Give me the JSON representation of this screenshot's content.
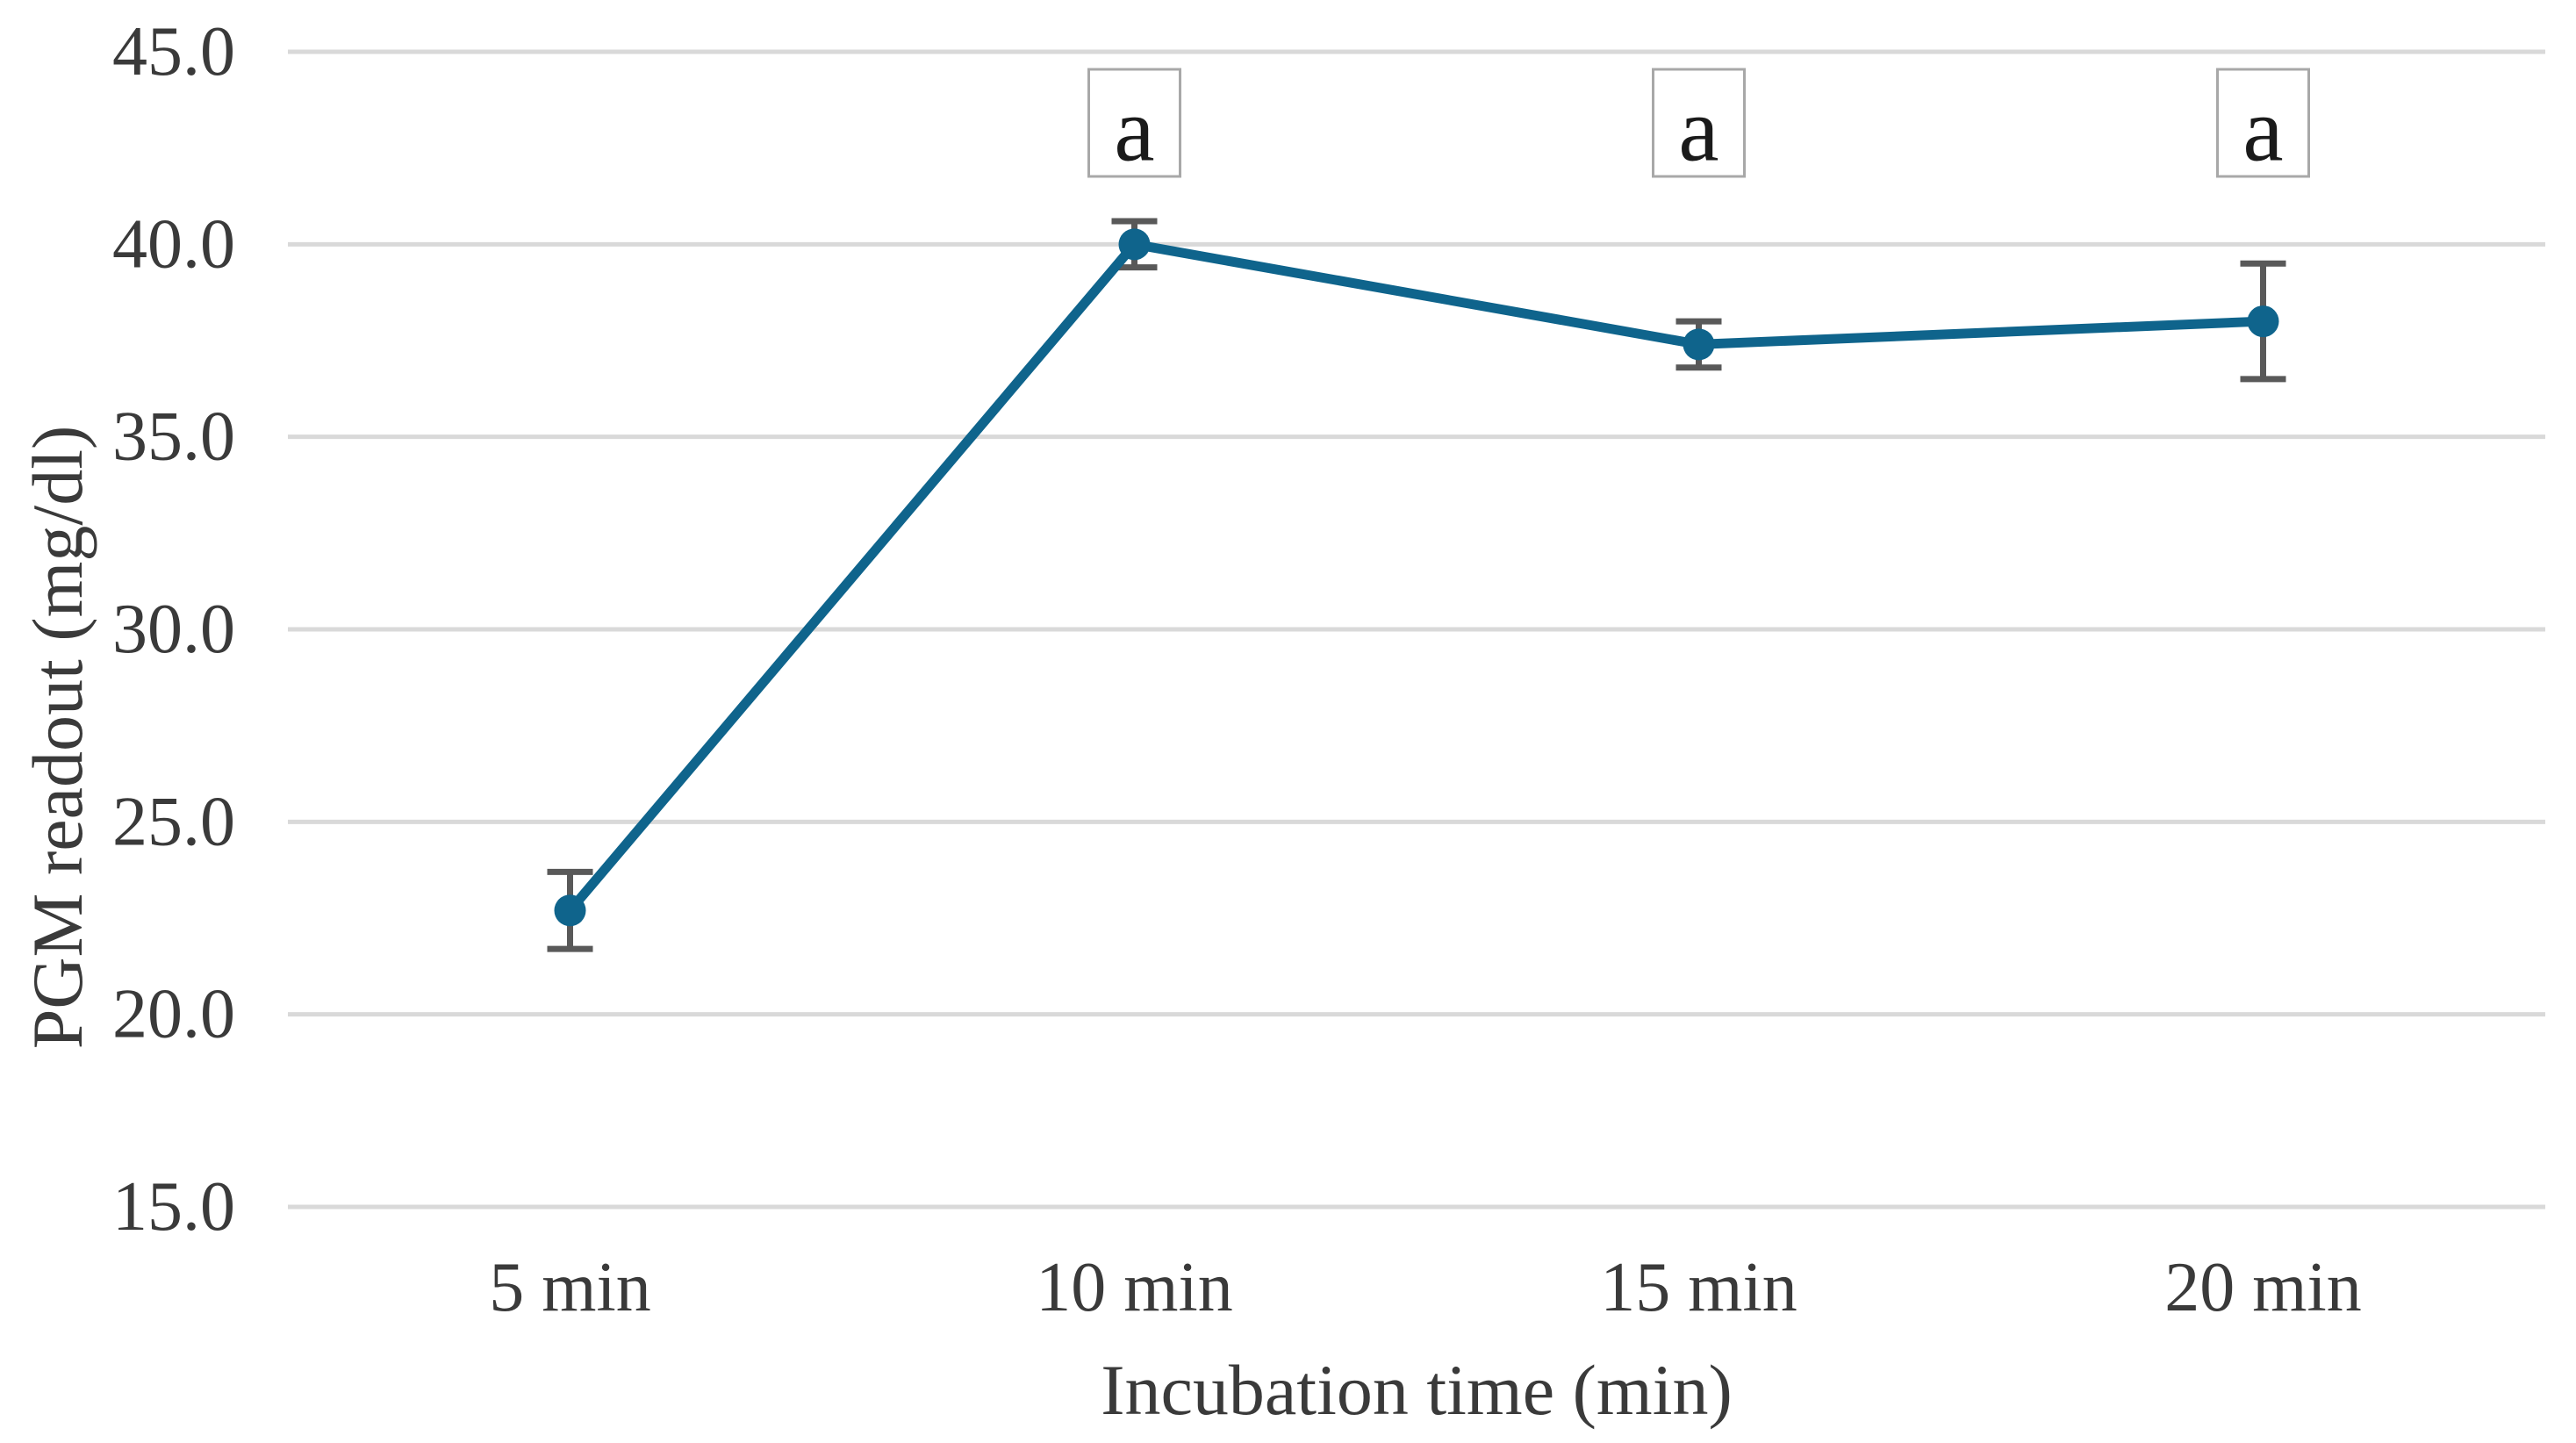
{
  "chart_data": {
    "type": "line",
    "title": "",
    "xlabel": "Incubation time (min)",
    "ylabel": "PGM readout (mg/dl)",
    "categories": [
      "5 min",
      "10 min",
      "15 min",
      "20 min"
    ],
    "series": [
      {
        "name": "PGM readout",
        "values": [
          22.7,
          40.0,
          37.4,
          38.0
        ],
        "error_plus": [
          1.0,
          0.6,
          0.6,
          1.5
        ],
        "error_minus": [
          1.0,
          0.6,
          0.6,
          1.5
        ]
      }
    ],
    "annotations": [
      {
        "category_index": 1,
        "label": "a"
      },
      {
        "category_index": 2,
        "label": "a"
      },
      {
        "category_index": 3,
        "label": "a"
      }
    ],
    "y_axis": {
      "tick_labels": [
        "45.0",
        "40.0",
        "35.0",
        "30.0",
        "25.0",
        "20.0",
        "15.0"
      ],
      "min": 15,
      "max": 45
    },
    "grid": true,
    "legend": false,
    "marker": "circle"
  },
  "colors": {
    "series_line": "#0F648C",
    "error_bar": "#595959",
    "gridline": "#D9D9D9",
    "axis_text": "#3A3A3A",
    "annotation_border": "#A8A8A8",
    "annotation_text": "#1A1A1A",
    "background": "#FFFFFF"
  }
}
